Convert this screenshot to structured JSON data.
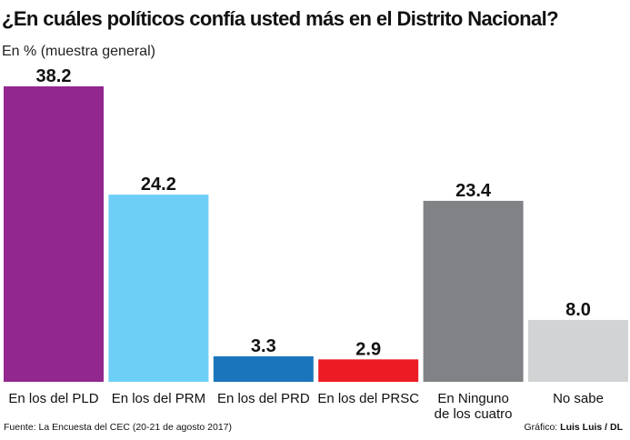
{
  "chart_data": {
    "type": "bar",
    "title": "¿En cuáles políticos confía usted más en el Distrito Nacional?",
    "subtitle": "En % (muestra general)",
    "categories": [
      [
        "En los del PLD"
      ],
      [
        "En los del PRM"
      ],
      [
        "En los del PRD"
      ],
      [
        "En los del PRSC"
      ],
      [
        "En Ninguno",
        "de los cuatro"
      ],
      [
        "No sabe"
      ]
    ],
    "values": [
      38.2,
      24.2,
      3.3,
      2.9,
      23.4,
      8.0
    ],
    "value_labels": [
      "38.2",
      "24.2",
      "3.3",
      "2.9",
      "23.4",
      "8.0"
    ],
    "colors": [
      "#92278f",
      "#6dcff6",
      "#1b75bc",
      "#ed1c24",
      "#808285",
      "#d1d3d4"
    ],
    "ylim": [
      0,
      38.2
    ],
    "grid": false
  },
  "footer": {
    "source": "Fuente: La Encuesta del CEC (20-21 de agosto 2017)",
    "credit_prefix": "Gráfico: ",
    "credit_name": "Luis Luis / DL"
  }
}
